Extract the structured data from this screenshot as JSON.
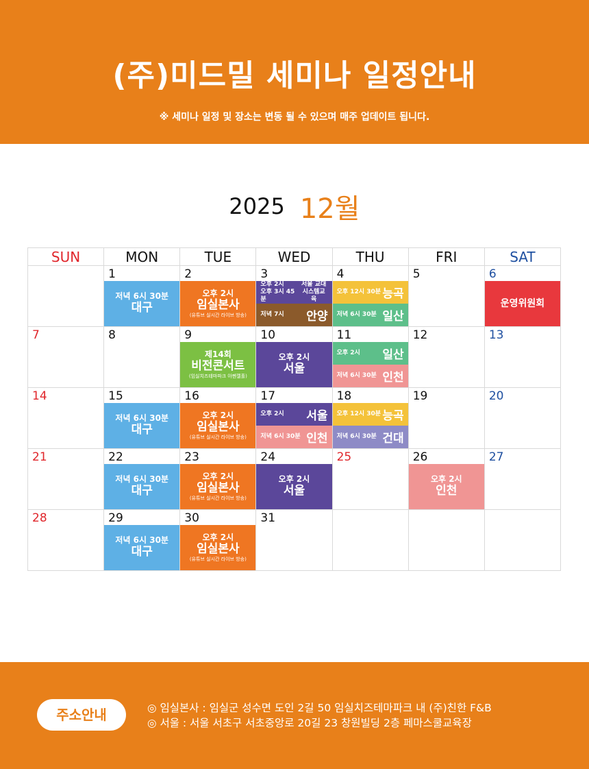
{
  "header": {
    "title": "(주)미드밀 세미나 일정안내",
    "notice": "※ 세미나 일정 및 장소는 변동 될 수 있으며 매주 업데이트 됩니다."
  },
  "month": {
    "year": "2025",
    "month": "12월"
  },
  "colors": {
    "orange": "#EF7622",
    "blue": "#5EB0E5",
    "purple": "#5B479A",
    "brown": "#8B5A2B",
    "yellow": "#F4C23A",
    "green": "#5DBF8A",
    "lime": "#7CC043",
    "pink": "#F09594",
    "lavender": "#8E8BC6",
    "red": "#E8383D",
    "header": "#E8801A"
  },
  "weekdays": [
    "SUN",
    "MON",
    "TUE",
    "WED",
    "THU",
    "FRI",
    "SAT"
  ],
  "weeks": [
    [
      {
        "day": ""
      },
      {
        "day": "1",
        "ev": [
          {
            "c": "blue",
            "t": "저녁  6시 30분",
            "p": "대구"
          }
        ]
      },
      {
        "day": "2",
        "ev": [
          {
            "c": "orange",
            "t": "오후 2시",
            "p": "임실본사",
            "n": "(유튜브 실시간 라이브 방송)"
          }
        ]
      },
      {
        "day": "3",
        "ev": [
          {
            "c": "purple",
            "l2": [
              "오후 2시",
              "오후 3시 45분"
            ],
            "r2": [
              "서울 교대",
              "시스템교육"
            ]
          },
          {
            "c": "brown",
            "s": "저녁 7시",
            "b": "안양"
          }
        ]
      },
      {
        "day": "4",
        "ev": [
          {
            "c": "yellow",
            "s": "오후 12시 30분",
            "b": "능곡"
          },
          {
            "c": "green",
            "s": "저녁 6시 30분",
            "b": "일산"
          }
        ]
      },
      {
        "day": "5"
      },
      {
        "day": "6",
        "col": "blue",
        "ev": [
          {
            "c": "red",
            "t": "운영위원회"
          }
        ]
      }
    ],
    [
      {
        "day": "7",
        "col": "red"
      },
      {
        "day": "8"
      },
      {
        "day": "9",
        "ev": [
          {
            "c": "lime",
            "t": "제14회",
            "p": "비전콘서트",
            "n": "(임실치즈테마파크 아펜젤홀)"
          }
        ]
      },
      {
        "day": "10",
        "ev": [
          {
            "c": "purple",
            "t": "오후 2시",
            "p": "서울"
          }
        ]
      },
      {
        "day": "11",
        "ev": [
          {
            "c": "green",
            "s": "오후 2시",
            "b": "일산"
          },
          {
            "c": "pink",
            "s": "저녁 6시 30분",
            "b": "인천"
          }
        ]
      },
      {
        "day": "12"
      },
      {
        "day": "13",
        "col": "blue"
      }
    ],
    [
      {
        "day": "14",
        "col": "red"
      },
      {
        "day": "15",
        "ev": [
          {
            "c": "blue",
            "t": "저녁  6시 30분",
            "p": "대구"
          }
        ]
      },
      {
        "day": "16",
        "ev": [
          {
            "c": "orange",
            "t": "오후 2시",
            "p": "임실본사",
            "n": "(유튜브 실시간 라이브 방송)"
          }
        ]
      },
      {
        "day": "17",
        "ev": [
          {
            "c": "purple",
            "s": "오후 2시",
            "b": "서울"
          },
          {
            "c": "pink",
            "s": "저녁 6시 30분",
            "b": "인천"
          }
        ]
      },
      {
        "day": "18",
        "ev": [
          {
            "c": "yellow",
            "s": "오후 12시 30분",
            "b": "능곡"
          },
          {
            "c": "lavender",
            "s": "저녁 6시 30분",
            "b": "건대"
          }
        ]
      },
      {
        "day": "19"
      },
      {
        "day": "20",
        "col": "blue"
      }
    ],
    [
      {
        "day": "21",
        "col": "red"
      },
      {
        "day": "22",
        "ev": [
          {
            "c": "blue",
            "t": "저녁  6시 30분",
            "p": "대구"
          }
        ]
      },
      {
        "day": "23",
        "ev": [
          {
            "c": "orange",
            "t": "오후 2시",
            "p": "임실본사",
            "n": "(유튜브 실시간 라이브 방송)"
          }
        ]
      },
      {
        "day": "24",
        "ev": [
          {
            "c": "purple",
            "t": "오후 2시",
            "p": "서울"
          }
        ]
      },
      {
        "day": "25",
        "col": "red"
      },
      {
        "day": "26",
        "ev": [
          {
            "c": "pink",
            "t": "오후 2시",
            "p": "인천"
          }
        ]
      },
      {
        "day": "27",
        "col": "blue"
      }
    ],
    [
      {
        "day": "28",
        "col": "red"
      },
      {
        "day": "29",
        "ev": [
          {
            "c": "blue",
            "t": "저녁  6시 30분",
            "p": "대구"
          }
        ]
      },
      {
        "day": "30",
        "ev": [
          {
            "c": "orange",
            "t": "오후 2시",
            "p": "임실본사",
            "n": "(유튜브 실시간 라이브 방송)"
          }
        ]
      },
      {
        "day": "31"
      },
      {
        "day": ""
      },
      {
        "day": ""
      },
      {
        "day": ""
      }
    ]
  ],
  "footer": {
    "button": "주소안내",
    "lines": [
      "◎ 임실본사 : 임실군 성수면 도인 2길 50 임실치즈테마파크 내 (주)친한 F&B",
      "◎ 서울 : 서울 서초구 서초중앙로 20길 23 창원빌딩 2층 페마스쿨교육장"
    ]
  }
}
